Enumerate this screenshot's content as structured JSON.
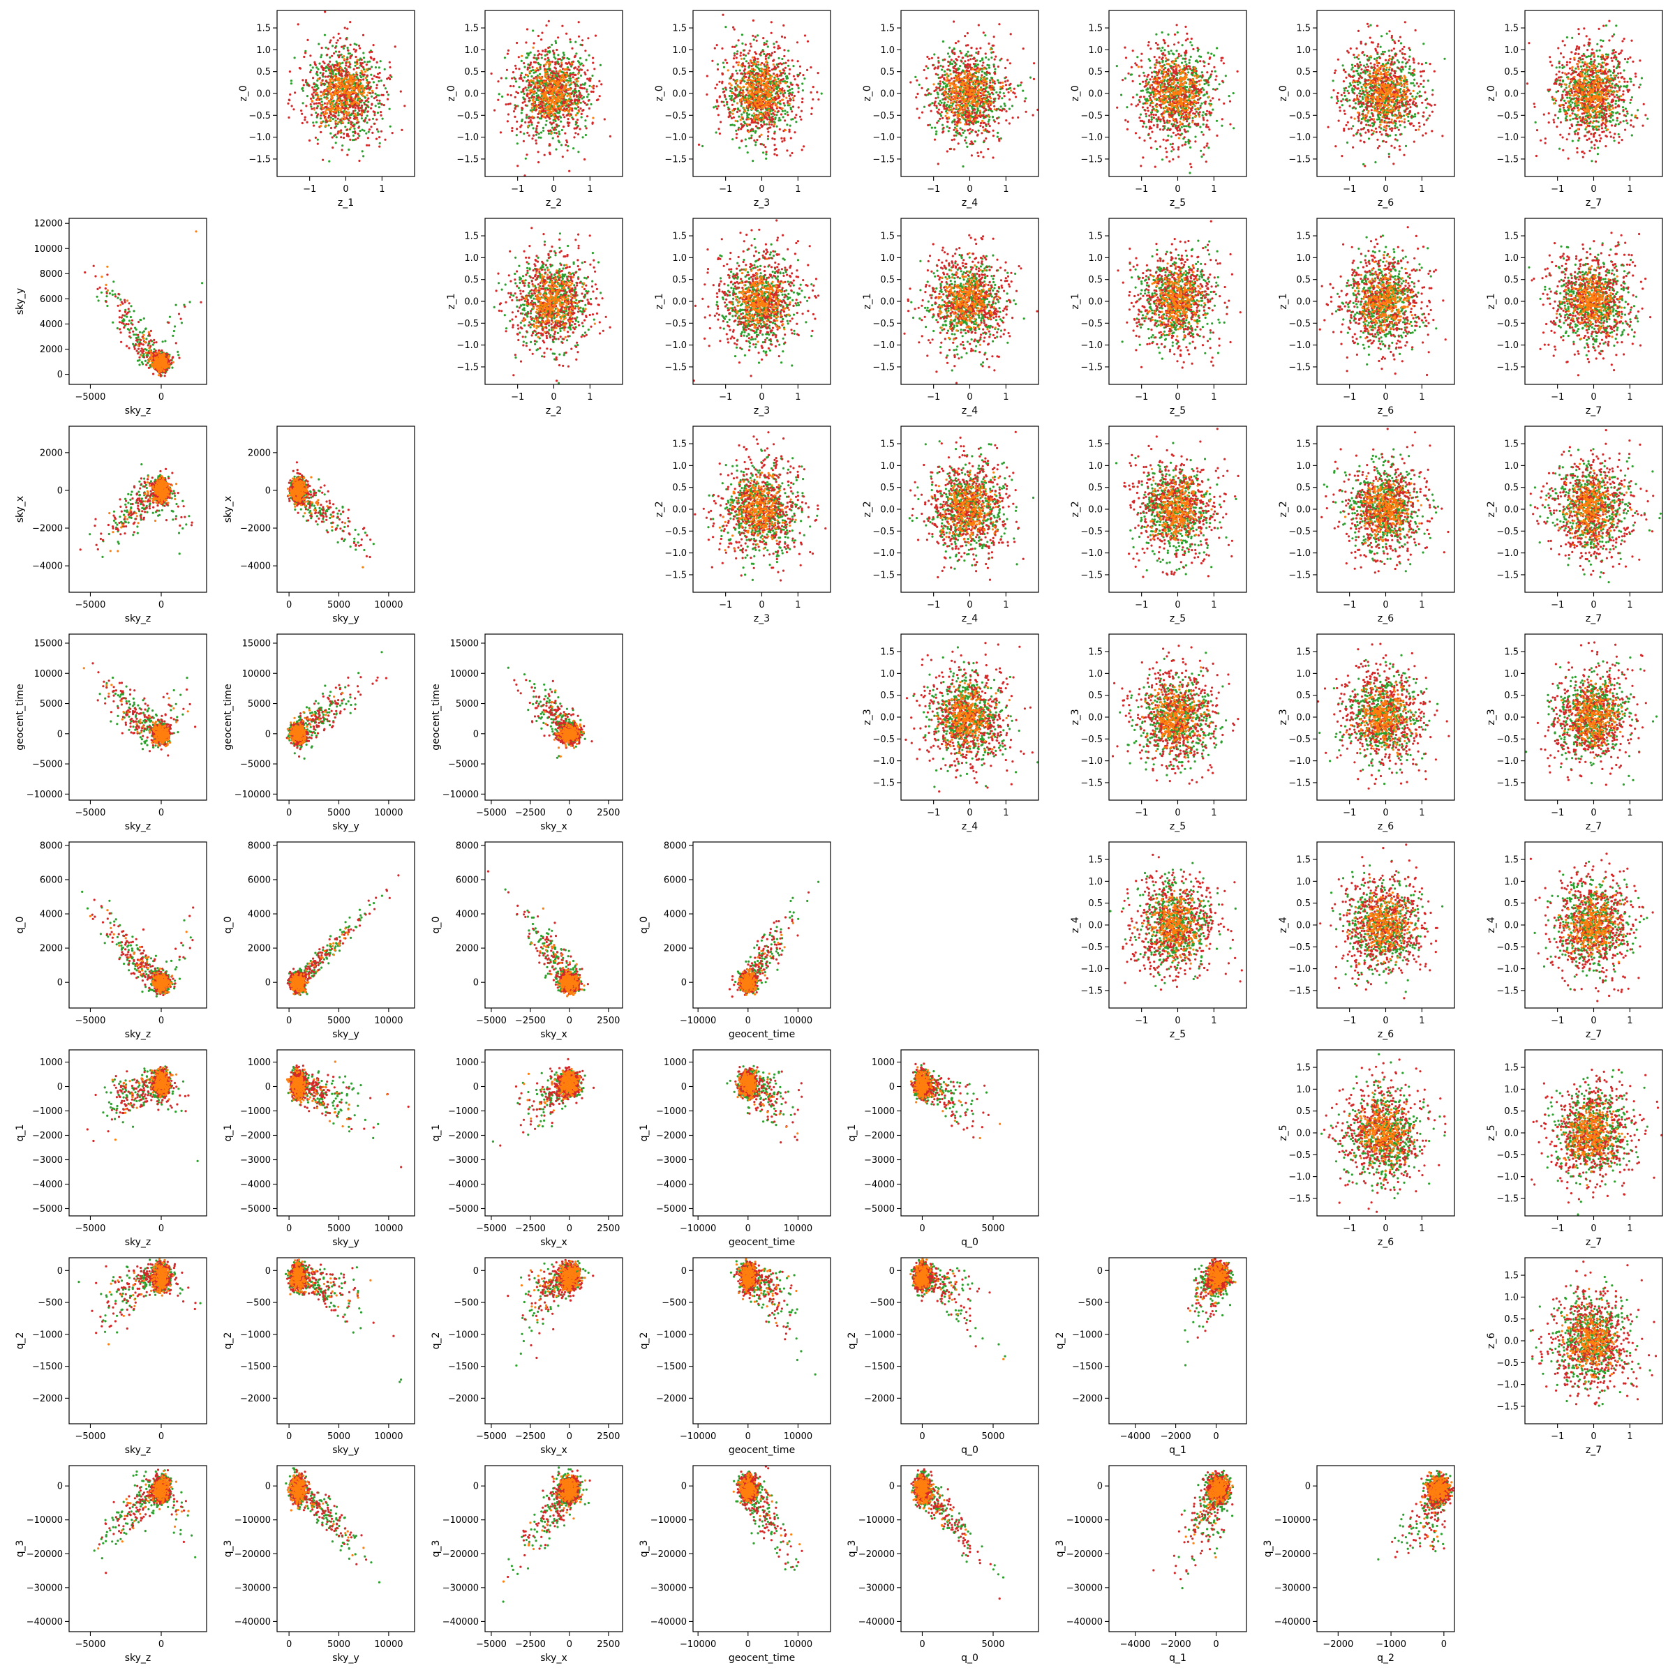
{
  "figure": {
    "rows": 8,
    "cols": 8,
    "colors": {
      "series_a": "#2ca02c",
      "series_b": "#ff7f0e",
      "series_c": "#d62728"
    }
  },
  "chart_data": {
    "type": "scatter",
    "description_of_layout": "",
    "lower_variables": [
      "sky_z",
      "sky_y",
      "sky_x",
      "geocent_time",
      "q_0",
      "q_1",
      "q_2",
      "q_3"
    ],
    "upper_variables": [
      "z_0",
      "z_1",
      "z_2",
      "z_3",
      "z_4",
      "z_5",
      "z_6",
      "z_7"
    ],
    "axes": {
      "sky_z": {
        "lim": [
          -6500,
          3200
        ],
        "ticks": [
          -5000,
          0
        ]
      },
      "sky_y": {
        "lim": [
          -1200,
          12600
        ],
        "ticks": [
          0,
          5000,
          10000
        ],
        "lim_as_y": [
          -800,
          12400
        ],
        "ticks_as_y": [
          0,
          2000,
          4000,
          6000,
          8000,
          10000,
          12000
        ]
      },
      "sky_x": {
        "lim": [
          -5400,
          3400
        ],
        "ticks": [
          -5000,
          -2500,
          0,
          2500
        ],
        "ticks_as_y": [
          -4000,
          -2000,
          0,
          2000
        ]
      },
      "geocent_time": {
        "lim": [
          -11000,
          16500
        ],
        "ticks": [
          -10000,
          0,
          10000
        ],
        "ticks_as_y": [
          -10000,
          -5000,
          0,
          5000,
          10000,
          15000
        ]
      },
      "q_0": {
        "lim": [
          -1500,
          8200
        ],
        "ticks": [
          0,
          5000
        ],
        "ticks_as_y": [
          0,
          2000,
          4000,
          6000,
          8000
        ]
      },
      "q_1": {
        "lim": [
          -5300,
          1500
        ],
        "ticks": [
          -4000,
          -2000,
          0
        ],
        "ticks_as_y": [
          -5000,
          -4000,
          -3000,
          -2000,
          -1000,
          0,
          1000
        ]
      },
      "q_2": {
        "lim": [
          -2400,
          200
        ],
        "ticks": [
          -2000,
          -1000,
          0
        ],
        "ticks_as_y": [
          -2000,
          -1500,
          -1000,
          -500,
          0
        ]
      },
      "q_3": {
        "lim": [
          -43000,
          6000
        ],
        "ticks_as_y": [
          -40000,
          -30000,
          -20000,
          -10000,
          0
        ]
      },
      "z": {
        "lim": [
          -1.9,
          1.9
        ],
        "ticks": [
          -1,
          0,
          1
        ],
        "ticks_as_y": [
          -1.5,
          -1.0,
          -0.5,
          0.0,
          0.5,
          1.0,
          1.5
        ]
      }
    },
    "points_per_panel": {
      "series_a": 500,
      "series_b": 250,
      "series_c": 500
    },
    "seed": 7
  }
}
